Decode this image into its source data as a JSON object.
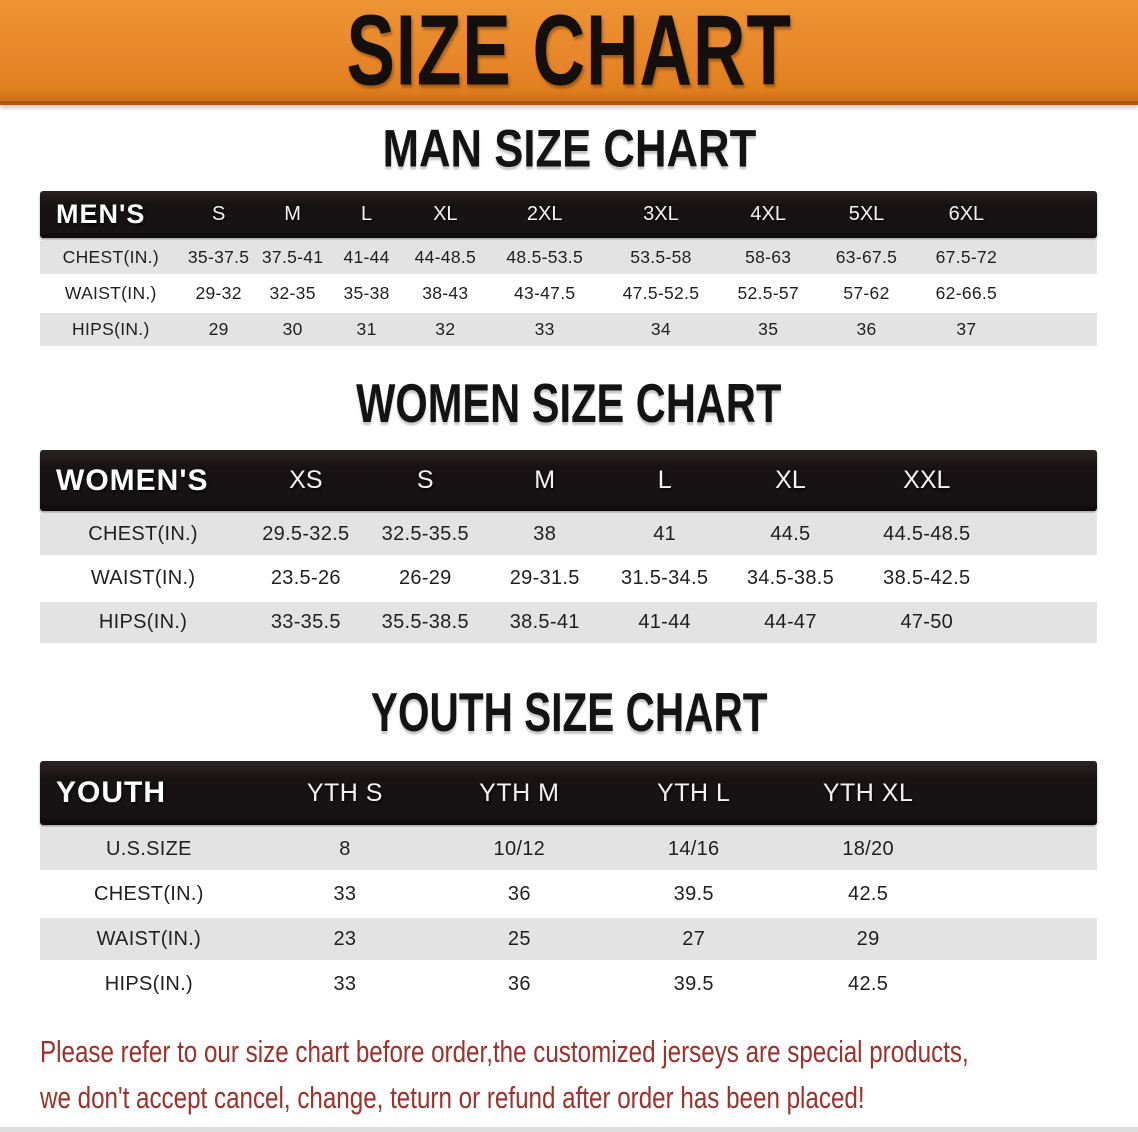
{
  "banner": {
    "title": "SIZE CHART"
  },
  "sections": {
    "men": {
      "heading": "MAN SIZE CHART",
      "table": {
        "corner_label": "MEN'S",
        "columns": [
          "S",
          "M",
          "L",
          "XL",
          "2XL",
          "3XL",
          "4XL",
          "5XL",
          "6XL"
        ],
        "rows": [
          {
            "label": "CHEST(IN.)",
            "values": [
              "35-37.5",
              "37.5-41",
              "41-44",
              "44-48.5",
              "48.5-53.5",
              "53.5-58",
              "58-63",
              "63-67.5",
              "67.5-72"
            ]
          },
          {
            "label": "WAIST(IN.)",
            "values": [
              "29-32",
              "32-35",
              "35-38",
              "38-43",
              "43-47.5",
              "47.5-52.5",
              "52.5-57",
              "57-62",
              "62-66.5"
            ]
          },
          {
            "label": "HIPS(IN.)",
            "values": [
              "29",
              "30",
              "31",
              "32",
              "33",
              "34",
              "35",
              "36",
              "37"
            ]
          }
        ]
      }
    },
    "women": {
      "heading": "WOMEN SIZE CHART",
      "table": {
        "corner_label": "WOMEN'S",
        "columns": [
          "XS",
          "S",
          "M",
          "L",
          "XL",
          "XXL"
        ],
        "rows": [
          {
            "label": "CHEST(IN.)",
            "values": [
              "29.5-32.5",
              "32.5-35.5",
              "38",
              "41",
              "44.5",
              "44.5-48.5"
            ]
          },
          {
            "label": "WAIST(IN.)",
            "values": [
              "23.5-26",
              "26-29",
              "29-31.5",
              "31.5-34.5",
              "34.5-38.5",
              "38.5-42.5"
            ]
          },
          {
            "label": "HIPS(IN.)",
            "values": [
              "33-35.5",
              "35.5-38.5",
              "38.5-41",
              "41-44",
              "44-47",
              "47-50"
            ]
          }
        ]
      }
    },
    "youth": {
      "heading": "YOUTH SIZE CHART",
      "table": {
        "corner_label": "YOUTH",
        "columns": [
          "YTH S",
          "YTH M",
          "YTH L",
          "YTH XL"
        ],
        "rows": [
          {
            "label": "U.S.SIZE",
            "values": [
              "8",
              "10/12",
              "14/16",
              "18/20"
            ]
          },
          {
            "label": "CHEST(IN.)",
            "values": [
              "33",
              "36",
              "39.5",
              "42.5"
            ]
          },
          {
            "label": "WAIST(IN.)",
            "values": [
              "23",
              "25",
              "27",
              "29"
            ]
          },
          {
            "label": "HIPS(IN.)",
            "values": [
              "33",
              "36",
              "39.5",
              "42.5"
            ]
          }
        ]
      }
    }
  },
  "footer": {
    "lines": [
      "Please refer to our size chart before order,the customized jerseys are special products,",
      "we don't accept cancel, change, teturn or refund after order has been placed!"
    ],
    "color": "#A0302A"
  },
  "colors": {
    "banner_orange": "#E8872B",
    "banner_title_black": "#140F0C",
    "table_header_black": "#171213",
    "table_header_text": "#FFFFFF",
    "row_gray": "#E3E3E3",
    "row_white": "#FFFFFF",
    "body_text": "#1F1F1F"
  }
}
